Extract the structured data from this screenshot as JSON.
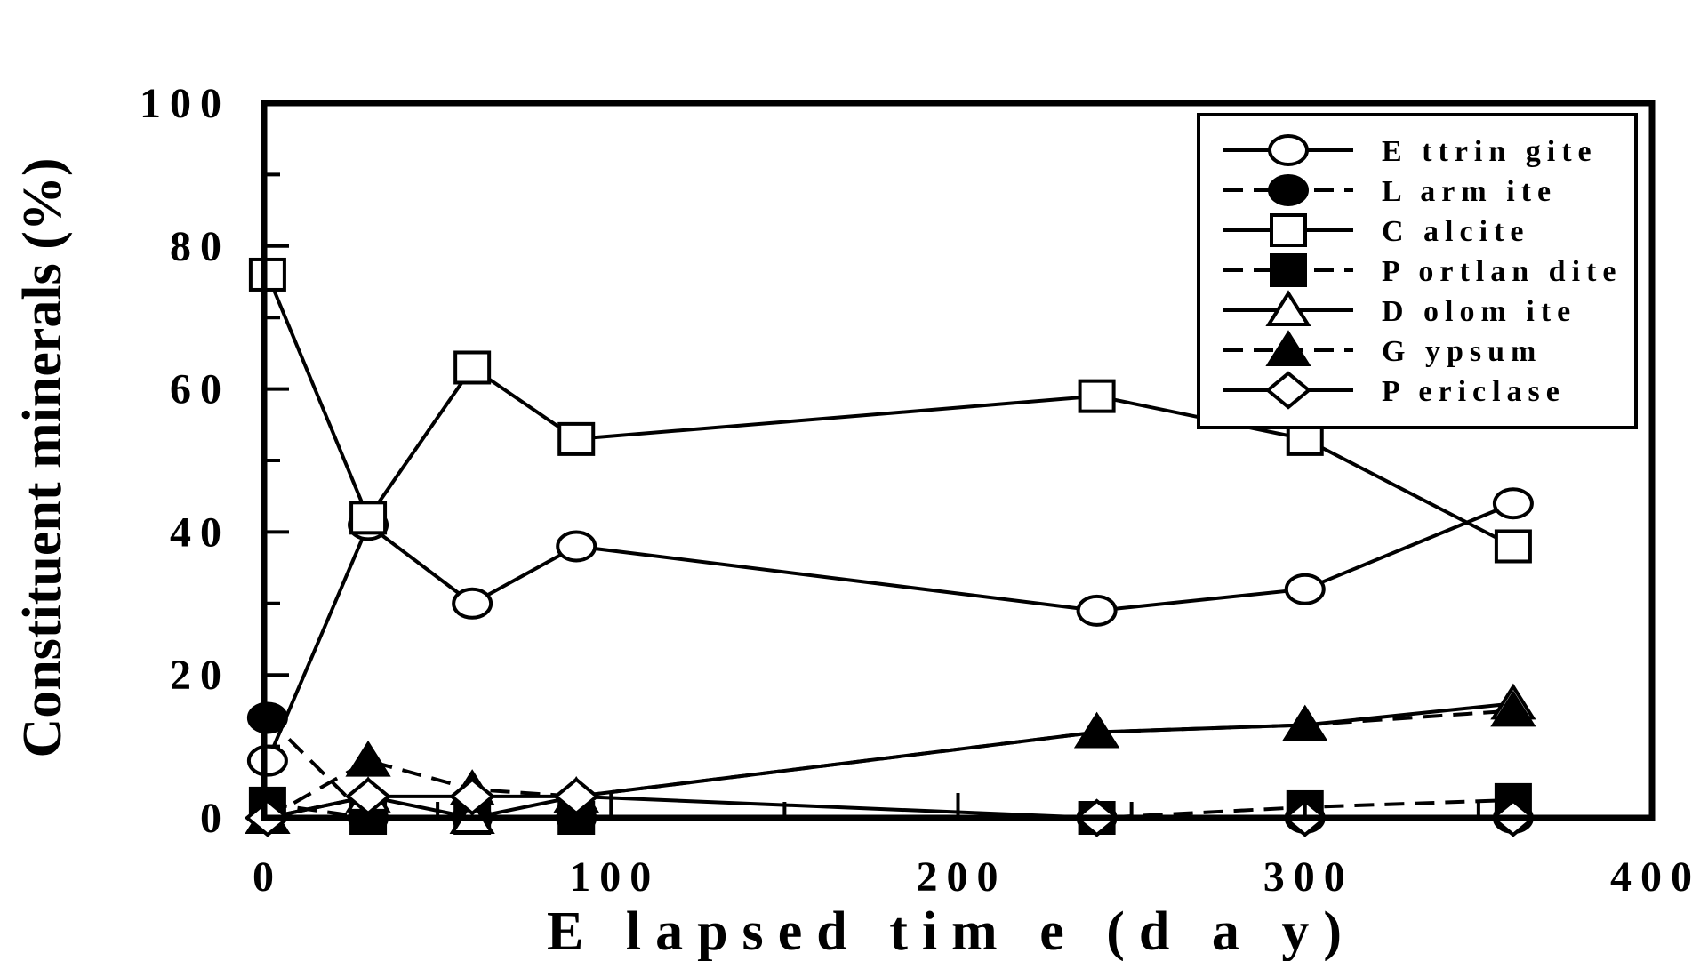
{
  "chart_data": {
    "type": "line",
    "xlabel": "E lapsed  tim e  (d a y)",
    "ylabel": "Constituent minerals (%)",
    "xlim": [
      0,
      400
    ],
    "ylim": [
      0,
      100
    ],
    "x_ticks": [
      "0",
      "100",
      "200",
      "300",
      "400"
    ],
    "y_ticks": [
      "0",
      "20",
      "40",
      "60",
      "80",
      "100"
    ],
    "grid": false,
    "legend_position": "top-right",
    "x": [
      1,
      30,
      60,
      90,
      240,
      300,
      360
    ],
    "series": [
      {
        "name": "E ttrin gite",
        "marker": "circle-open",
        "dash": "solid",
        "values": [
          8,
          41,
          30,
          38,
          29,
          32,
          44
        ]
      },
      {
        "name": "L arm ite",
        "marker": "circle-filled",
        "dash": "dashed",
        "values": [
          14,
          0,
          0,
          0,
          0,
          0,
          0
        ]
      },
      {
        "name": "C alcite",
        "marker": "square-open",
        "dash": "solid",
        "values": [
          76,
          42,
          63,
          53,
          59,
          53,
          38
        ]
      },
      {
        "name": "P ortlan dite",
        "marker": "square-filled",
        "dash": "dashed",
        "values": [
          2,
          0,
          0,
          0,
          0,
          1.5,
          2.5
        ]
      },
      {
        "name": "D olom ite",
        "marker": "triangle-open",
        "dash": "solid",
        "values": [
          0,
          3,
          0,
          3,
          12,
          13,
          16
        ]
      },
      {
        "name": "G ypsum",
        "marker": "triangle-filled",
        "dash": "dashed",
        "values": [
          0,
          8,
          4,
          3,
          12,
          13,
          15
        ]
      },
      {
        "name": "P ericlase",
        "marker": "diamond-open",
        "dash": "solid",
        "values": [
          0,
          3,
          3,
          3,
          0,
          0,
          0
        ]
      }
    ]
  }
}
